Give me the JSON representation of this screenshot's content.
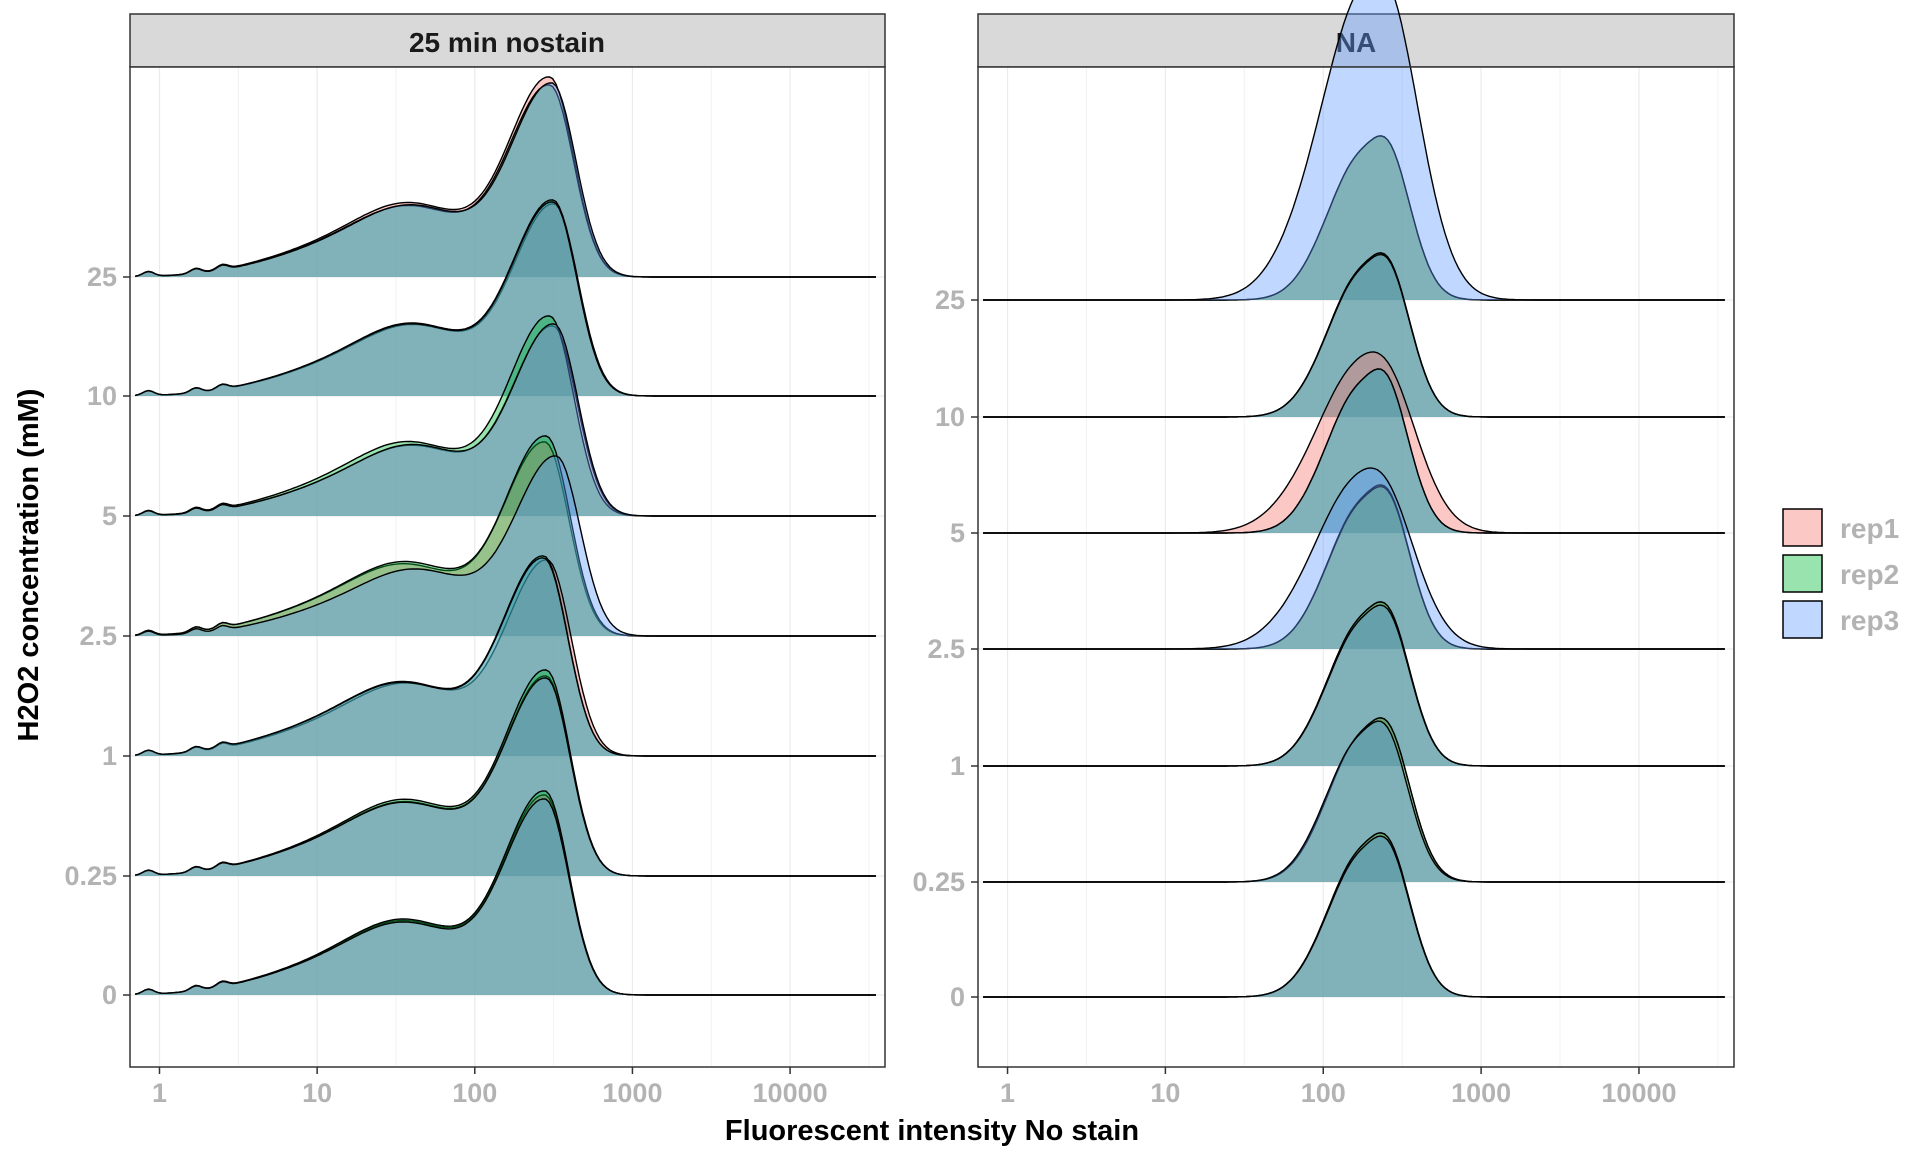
{
  "chart_data": {
    "type": "area",
    "subtype": "ridgeline-density",
    "xlabel": "Fluorescent intensity No stain",
    "ylabel": "H2O2 concentration (mM)",
    "x_scale": "log10",
    "x_ticks": [
      1,
      10,
      100,
      1000,
      10000
    ],
    "x_tick_labels": [
      "1",
      "10",
      "100",
      "1000",
      "10000"
    ],
    "y_categories": [
      "0",
      "0.25",
      "1",
      "2.5",
      "5",
      "10",
      "25"
    ],
    "legend": {
      "position": "right",
      "entries": [
        "rep1",
        "rep2",
        "rep3"
      ]
    },
    "colors": {
      "rep1": "#F8766D",
      "rep2": "#00BA38",
      "rep3": "#619CFF"
    },
    "series_alpha": 0.4,
    "grid": true,
    "panels": [
      {
        "strip_label": "25 min nostain",
        "x_range": [
          0.7,
          35000
        ],
        "ridges": [
          {
            "h2o2": "0",
            "series": [
              {
                "name": "rep1",
                "peak_x": 280,
                "height": 1.0
              },
              {
                "name": "rep2",
                "peak_x": 280,
                "height": 1.02
              },
              {
                "name": "rep3",
                "peak_x": 280,
                "height": 0.98
              }
            ]
          },
          {
            "h2o2": "0.25",
            "series": [
              {
                "name": "rep1",
                "peak_x": 285,
                "height": 1.0
              },
              {
                "name": "rep2",
                "peak_x": 285,
                "height": 1.03
              },
              {
                "name": "rep3",
                "peak_x": 285,
                "height": 0.99
              }
            ]
          },
          {
            "h2o2": "1",
            "series": [
              {
                "name": "rep1",
                "peak_x": 290,
                "height": 0.98
              },
              {
                "name": "rep2",
                "peak_x": 275,
                "height": 1.0
              },
              {
                "name": "rep3",
                "peak_x": 275,
                "height": 0.99
              }
            ]
          },
          {
            "h2o2": "2.5",
            "series": [
              {
                "name": "rep1",
                "peak_x": 280,
                "height": 0.97
              },
              {
                "name": "rep2",
                "peak_x": 285,
                "height": 1.0
              },
              {
                "name": "rep3",
                "peak_x": 330,
                "height": 0.9
              }
            ]
          },
          {
            "h2o2": "5",
            "series": [
              {
                "name": "rep1",
                "peak_x": 315,
                "height": 0.95
              },
              {
                "name": "rep2",
                "peak_x": 300,
                "height": 1.0
              },
              {
                "name": "rep3",
                "peak_x": 320,
                "height": 0.96
              }
            ]
          },
          {
            "h2o2": "10",
            "series": [
              {
                "name": "rep1",
                "peak_x": 320,
                "height": 0.96
              },
              {
                "name": "rep2",
                "peak_x": 315,
                "height": 0.98
              },
              {
                "name": "rep3",
                "peak_x": 315,
                "height": 0.97
              }
            ]
          },
          {
            "h2o2": "25",
            "series": [
              {
                "name": "rep1",
                "peak_x": 300,
                "height": 1.0
              },
              {
                "name": "rep2",
                "peak_x": 300,
                "height": 0.96
              },
              {
                "name": "rep3",
                "peak_x": 310,
                "height": 0.97
              }
            ]
          }
        ]
      },
      {
        "strip_label": "NA",
        "x_range": [
          0.7,
          35000
        ],
        "ridges": [
          {
            "h2o2": "0",
            "series": [
              {
                "name": "rep1",
                "peak_x": 190,
                "height": 1.0
              },
              {
                "name": "rep2",
                "peak_x": 190,
                "height": 1.0
              },
              {
                "name": "rep3",
                "peak_x": 190,
                "height": 0.98
              }
            ]
          },
          {
            "h2o2": "0.25",
            "series": [
              {
                "name": "rep1",
                "peak_x": 190,
                "height": 1.0
              },
              {
                "name": "rep2",
                "peak_x": 190,
                "height": 1.0
              },
              {
                "name": "rep3",
                "peak_x": 185,
                "height": 0.98
              }
            ]
          },
          {
            "h2o2": "1",
            "series": [
              {
                "name": "rep1",
                "peak_x": 190,
                "height": 1.0
              },
              {
                "name": "rep2",
                "peak_x": 190,
                "height": 1.0
              },
              {
                "name": "rep3",
                "peak_x": 190,
                "height": 0.98
              }
            ]
          },
          {
            "h2o2": "2.5",
            "series": [
              {
                "name": "rep1",
                "peak_x": 190,
                "height": 1.0
              },
              {
                "name": "rep2",
                "peak_x": 190,
                "height": 0.99
              },
              {
                "name": "rep3",
                "peak_x": 170,
                "height": 1.0,
                "wide": true
              }
            ]
          },
          {
            "h2o2": "5",
            "series": [
              {
                "name": "rep1",
                "peak_x": 175,
                "height": 1.0,
                "wide": true
              },
              {
                "name": "rep2",
                "peak_x": 185,
                "height": 1.0
              },
              {
                "name": "rep3",
                "peak_x": 185,
                "height": 1.0
              }
            ]
          },
          {
            "h2o2": "10",
            "series": [
              {
                "name": "rep1",
                "peak_x": 190,
                "height": 1.0
              },
              {
                "name": "rep2",
                "peak_x": 190,
                "height": 1.0
              },
              {
                "name": "rep3",
                "peak_x": 190,
                "height": 0.99
              }
            ]
          },
          {
            "h2o2": "25",
            "series": [
              {
                "name": "rep1",
                "peak_x": 190,
                "height": 1.0
              },
              {
                "name": "rep2",
                "peak_x": 190,
                "height": 1.0
              },
              {
                "name": "rep3",
                "peak_x": 185,
                "height": 1.82,
                "wide": true
              }
            ]
          }
        ]
      }
    ]
  }
}
